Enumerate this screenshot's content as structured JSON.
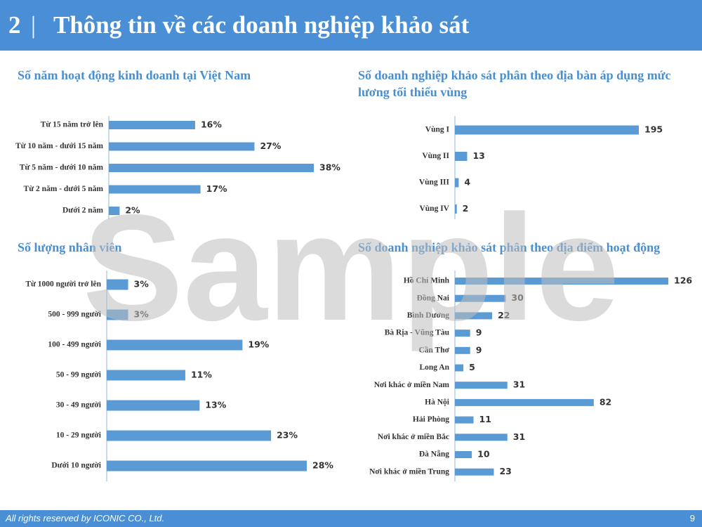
{
  "header": {
    "number": "2",
    "title": "Thông tin về các doanh nghiệp khảo sát"
  },
  "footer": {
    "text": "All rights reserved by ICONIC CO., Ltd.",
    "page": "9"
  },
  "watermark": "Sample",
  "chart_data": [
    {
      "type": "bar",
      "orientation": "horizontal",
      "title": "Số năm hoạt động kinh doanh tại Việt Nam",
      "color": "#5b9bd5",
      "categories": [
        "Từ 15 năm trở lên",
        "Từ 10 năm - dưới 15 năm",
        "Từ 5 năm - dưới 10 năm",
        "Từ 2 năm - dưới 5 năm",
        "Dưới 2 năm"
      ],
      "values": [
        16,
        27,
        38,
        17,
        2
      ],
      "value_labels": [
        "16%",
        "27%",
        "38%",
        "17%",
        "2%"
      ]
    },
    {
      "type": "bar",
      "orientation": "horizontal",
      "title": "Số doanh nghiệp khảo sát phân theo địa bàn áp dụng mức lương tối thiểu vùng",
      "color": "#5b9bd5",
      "categories": [
        "Vùng I",
        "Vùng II",
        "Vùng III",
        "Vùng IV"
      ],
      "values": [
        195,
        13,
        4,
        2
      ]
    },
    {
      "type": "bar",
      "orientation": "horizontal",
      "title": "Số lượng nhân viên",
      "color": "#5b9bd5",
      "categories": [
        "Từ 1000 người trở lên",
        "500 - 999 người",
        "100 - 499 người",
        "50 - 99 người",
        "30 - 49 người",
        "10 - 29 người",
        "Dưới 10 người"
      ],
      "values": [
        3,
        3,
        19,
        11,
        13,
        23,
        28
      ],
      "value_labels": [
        "3%",
        "3%",
        "19%",
        "11%",
        "13%",
        "23%",
        "28%"
      ]
    },
    {
      "type": "bar",
      "orientation": "horizontal",
      "title": "Số doanh nghiệp khảo sát phân theo địa điểm hoạt động",
      "color": "#5b9bd5",
      "categories": [
        "Hồ Chí Minh",
        "Đồng Nai",
        "Bình Dương",
        "Bà Rịa - Vũng Tàu",
        "Cần Thơ",
        "Long An",
        "Nơi khác ở miền Nam",
        "Hà Nội",
        "Hải Phòng",
        "Nơi khác ở miền Bắc",
        "Đà Nẵng",
        "Nơi khác ở miền Trung"
      ],
      "values": [
        126,
        30,
        22,
        9,
        9,
        5,
        31,
        82,
        11,
        31,
        10,
        23
      ]
    }
  ]
}
